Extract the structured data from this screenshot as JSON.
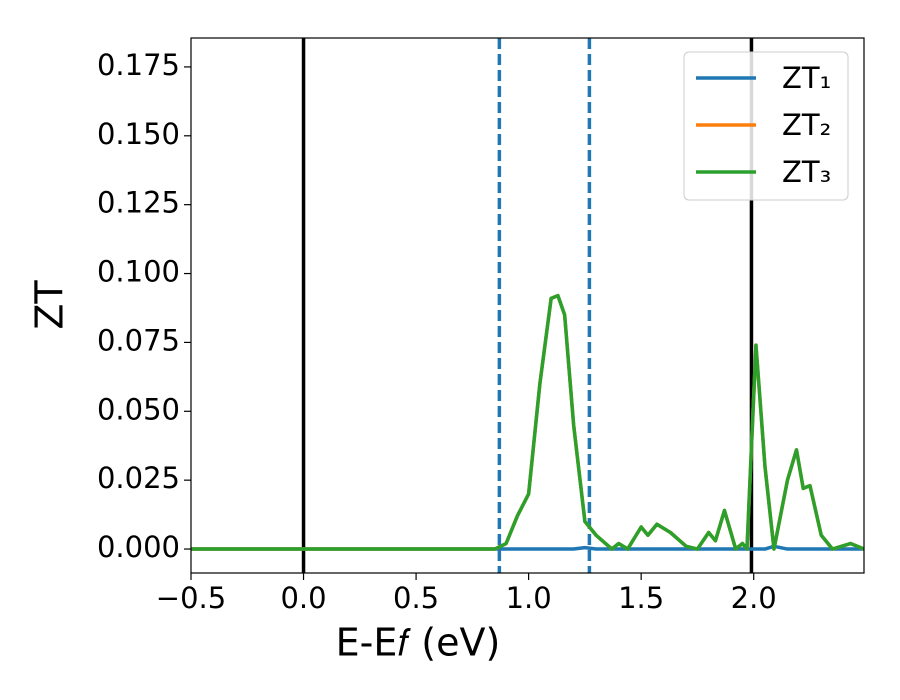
{
  "chart_data": {
    "type": "line",
    "x_label": "E-E𝑓 (eV)",
    "y_label": "ZT",
    "x": [
      -0.5,
      0.8,
      0.85,
      0.9,
      0.95,
      1.0,
      1.05,
      1.1,
      1.13,
      1.16,
      1.2,
      1.25,
      1.3,
      1.37,
      1.4,
      1.44,
      1.5,
      1.53,
      1.57,
      1.63,
      1.7,
      1.75,
      1.8,
      1.83,
      1.87,
      1.92,
      1.95,
      1.97,
      2.01,
      2.05,
      2.09,
      2.15,
      2.19,
      2.22,
      2.25,
      2.3,
      2.35,
      2.43,
      2.49
    ],
    "series": [
      {
        "name": "ZT₁",
        "color": "#1f77b4",
        "values": [
          0,
          0,
          0,
          0,
          0,
          0,
          0,
          0,
          0,
          0,
          0,
          0.0005,
          0,
          0,
          0,
          0,
          0,
          0,
          0,
          0,
          0,
          0,
          0,
          0,
          0,
          0,
          0,
          0,
          0,
          0,
          0.001,
          0,
          0,
          0,
          0,
          0,
          0,
          0,
          0
        ]
      },
      {
        "name": "ZT₂",
        "color": "#ff7f0e",
        "values": [
          0,
          0,
          0,
          0.002,
          0.012,
          0.02,
          0.06,
          0.091,
          0.092,
          0.085,
          0.045,
          0.01,
          0.005,
          0,
          0.002,
          0,
          0.008,
          0.005,
          0.009,
          0.006,
          0.001,
          0,
          0.006,
          0.003,
          0.014,
          0,
          0.002,
          0,
          0.074,
          0.03,
          0,
          0.025,
          0.036,
          0.022,
          0.023,
          0.005,
          0,
          0.002,
          0
        ]
      },
      {
        "name": "ZT₃",
        "color": "#2ca02c",
        "values": [
          0,
          0,
          0,
          0.002,
          0.012,
          0.02,
          0.06,
          0.091,
          0.092,
          0.085,
          0.045,
          0.01,
          0.005,
          0,
          0.002,
          0,
          0.008,
          0.005,
          0.009,
          0.006,
          0.001,
          0,
          0.006,
          0.003,
          0.014,
          0,
          0.002,
          0,
          0.074,
          0.03,
          0,
          0.025,
          0.036,
          0.022,
          0.023,
          0.005,
          0,
          0.002,
          0
        ]
      }
    ],
    "vlines": [
      {
        "x": 0,
        "color": "#000000",
        "style": "solid"
      },
      {
        "x": 0.87,
        "color": "#1f77b4",
        "style": "dashed"
      },
      {
        "x": 1.27,
        "color": "#1f77b4",
        "style": "dashed"
      },
      {
        "x": 1.99,
        "color": "#000000",
        "style": "solid"
      }
    ],
    "xlim": [
      -0.5,
      2.49
    ],
    "ylim": [
      -0.0087,
      0.1855
    ],
    "xticks": [
      {
        "value": -0.5,
        "label": "−0.5"
      },
      {
        "value": 0,
        "label": "0.0"
      },
      0.5,
      {
        "value": 1,
        "label": "1.0"
      },
      1.5,
      {
        "value": 2,
        "label": "2.0"
      }
    ],
    "yticks": [
      {
        "value": 0,
        "label": "0.000"
      },
      0.025,
      {
        "value": 0.05,
        "label": "0.050"
      },
      0.075,
      {
        "value": 0.1,
        "label": "0.100"
      },
      0.125,
      {
        "value": 0.15,
        "label": "0.150"
      },
      0.175
    ],
    "grid": false,
    "legend": "upper right"
  }
}
